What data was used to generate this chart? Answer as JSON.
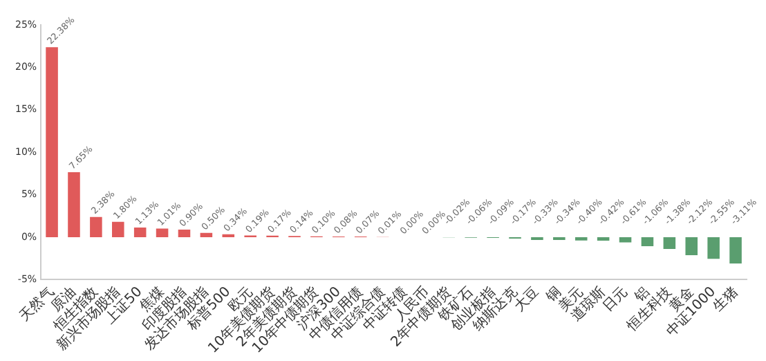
{
  "chart_data": {
    "type": "bar",
    "categories": [
      "天然气",
      "原油",
      "恒生指数",
      "新兴市场股指",
      "上证50",
      "焦煤",
      "印度股指",
      "发达市场股指",
      "标普500",
      "欧元",
      "10年美债期货",
      "2年美债期货",
      "10年中债期货",
      "沪深300",
      "中债信用债",
      "中证综合债",
      "中证转债",
      "人民币",
      "2年中债期货",
      "铁矿石",
      "创业板指",
      "纳斯达克",
      "大豆",
      "铜",
      "美元",
      "道琼斯",
      "日元",
      "铝",
      "恒生科技",
      "黄金",
      "中证1000",
      "生猪"
    ],
    "values": [
      22.38,
      7.65,
      2.38,
      1.8,
      1.13,
      1.01,
      0.9,
      0.5,
      0.34,
      0.19,
      0.17,
      0.14,
      0.1,
      0.08,
      0.07,
      0.01,
      0.0,
      0.0,
      -0.02,
      -0.06,
      -0.09,
      -0.17,
      -0.33,
      -0.34,
      -0.4,
      -0.42,
      -0.61,
      -1.06,
      -1.38,
      -2.12,
      -2.55,
      -3.11
    ],
    "colors": [
      "#e05a5a",
      "#e05a5a",
      "#e05a5a",
      "#e05a5a",
      "#e05a5a",
      "#e05a5a",
      "#e05a5a",
      "#e05a5a",
      "#e05a5a",
      "#e05a5a",
      "#e05a5a",
      "#e05a5a",
      "#e05a5a",
      "#e05a5a",
      "#e05a5a",
      "#e05a5a",
      "#e05a5a",
      "#e05a5a",
      "#5a9e6f",
      "#5a9e6f",
      "#5a9e6f",
      "#5a9e6f",
      "#5a9e6f",
      "#5a9e6f",
      "#5a9e6f",
      "#5a9e6f",
      "#5a9e6f",
      "#5a9e6f",
      "#5a9e6f",
      "#5a9e6f",
      "#5a9e6f",
      "#5a9e6f"
    ],
    "value_labels": [
      "22.38%",
      "7.65%",
      "2.38%",
      "1.80%",
      "1.13%",
      "1.01%",
      "0.90%",
      "0.50%",
      "0.34%",
      "0.19%",
      "0.17%",
      "0.14%",
      "0.10%",
      "0.08%",
      "0.07%",
      "0.01%",
      "0.00%",
      "0.00%",
      "-0.02%",
      "-0.06%",
      "-0.09%",
      "-0.17%",
      "-0.33%",
      "-0.34%",
      "-0.40%",
      "-0.42%",
      "-0.61%",
      "-1.06%",
      "-1.38%",
      "-2.12%",
      "-2.55%",
      "-3.11%"
    ],
    "ylim": [
      -5,
      25
    ],
    "yticks": [
      {
        "value": -5,
        "label": "-5%"
      },
      {
        "value": 0,
        "label": "0%"
      },
      {
        "value": 5,
        "label": "5%"
      },
      {
        "value": 10,
        "label": "10%"
      },
      {
        "value": 15,
        "label": "15%"
      },
      {
        "value": 20,
        "label": "20%"
      },
      {
        "value": 25,
        "label": "25%"
      }
    ],
    "grid": false,
    "legend": false
  }
}
